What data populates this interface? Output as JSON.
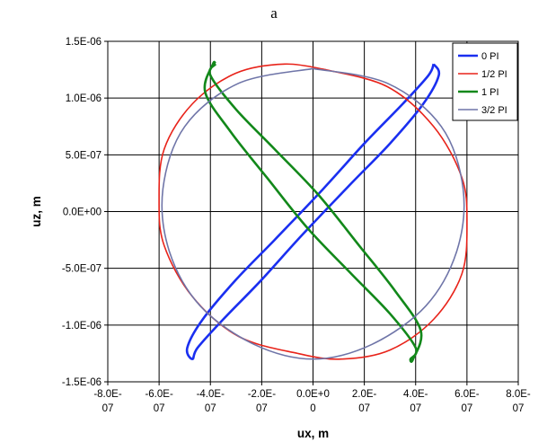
{
  "chart_data": {
    "type": "line",
    "title": "a",
    "xlabel": "ux, m",
    "ylabel": "uz, m",
    "xlim": [
      -8e-07,
      8e-07
    ],
    "ylim": [
      -1.5e-06,
      1.5e-06
    ],
    "x_ticks": [
      {
        "value": -8e-07,
        "line1": "-8.0E-",
        "line2": "07"
      },
      {
        "value": -6e-07,
        "line1": "-6.0E-",
        "line2": "07"
      },
      {
        "value": -4e-07,
        "line1": "-4.0E-",
        "line2": "07"
      },
      {
        "value": -2e-07,
        "line1": "-2.0E-",
        "line2": "07"
      },
      {
        "value": 0.0,
        "line1": "0.0E+0",
        "line2": "0"
      },
      {
        "value": 2e-07,
        "line1": "2.0E-",
        "line2": "07"
      },
      {
        "value": 4e-07,
        "line1": "4.0E-",
        "line2": "07"
      },
      {
        "value": 6e-07,
        "line1": "6.0E-",
        "line2": "07"
      },
      {
        "value": 8e-07,
        "line1": "8.0E-",
        "line2": "07"
      }
    ],
    "y_ticks": [
      {
        "value": 1.5e-06,
        "label": "1.5E-06"
      },
      {
        "value": 1e-06,
        "label": "1.0E-06"
      },
      {
        "value": 5e-07,
        "label": "5.0E-07"
      },
      {
        "value": 0.0,
        "label": "0.0E+00"
      },
      {
        "value": -5e-07,
        "label": "-5.0E-07"
      },
      {
        "value": -1e-06,
        "label": "-1.0E-06"
      },
      {
        "value": -1.5e-06,
        "label": "-1.5E-06"
      }
    ],
    "grid": true,
    "legend_position": "top-right",
    "series": [
      {
        "name": "0 PI",
        "color": "#1a2ff0",
        "x": [
          4.7e-07,
          4.5e-07,
          3.5e-07,
          2e-07,
          4e-08,
          -1.5e-07,
          -3e-07,
          -4.3e-07,
          -4.9e-07,
          -4.7e-07,
          -4.5e-07,
          -3.5e-07,
          -2e-07,
          -4e-08,
          1.5e-07,
          3e-07,
          4.3e-07,
          4.9e-07,
          4.7e-07
        ],
        "y": [
          1.3e-06,
          1.2e-06,
          9.5e-07,
          6e-07,
          2e-07,
          -2.5e-07,
          -6e-07,
          -9.5e-07,
          -1.2e-06,
          -1.3e-06,
          -1.2e-06,
          -9.5e-07,
          -6e-07,
          -2e-07,
          2.5e-07,
          6e-07,
          9.5e-07,
          1.2e-06,
          1.3e-06
        ]
      },
      {
        "name": "1/2 PI",
        "color": "#e8231a",
        "x": [
          5.1e-08,
          2.9e-07,
          4.7e-07,
          5.8e-07,
          6e-07,
          5.8e-07,
          4.7e-07,
          3e-07,
          1.1e-07,
          -6e-08,
          -2.9e-07,
          -4.7e-07,
          -5.8e-07,
          -6e-07,
          -5.8e-07,
          -4.7e-07,
          -3e-07,
          -1.1e-07,
          5.1e-08
        ],
        "y": [
          1.25e-06,
          1.1e-06,
          7.5e-07,
          3e-07,
          -1e-07,
          -5.5e-07,
          -9.5e-07,
          -1.22e-06,
          -1.3e-06,
          -1.25e-06,
          -1.1e-06,
          -7.5e-07,
          -3e-07,
          1e-07,
          5.5e-07,
          9.5e-07,
          1.22e-06,
          1.3e-06,
          1.25e-06
        ]
      },
      {
        "name": "1 PI",
        "color": "#12881a",
        "x": [
          -3.8e-07,
          -4e-07,
          -3e-07,
          -1.5e-07,
          2e-08,
          1.8e-07,
          3.2e-07,
          4.2e-07,
          3.9e-07,
          3.8e-07,
          4e-07,
          3e-07,
          1.5e-07,
          -2e-08,
          -1.8e-07,
          -3.2e-07,
          -4.2e-07,
          -3.9e-07,
          -3.8e-07
        ],
        "y": [
          1.3e-06,
          1.2e-06,
          9e-07,
          5.5e-07,
          1.5e-07,
          -3e-07,
          -7e-07,
          -1.05e-06,
          -1.3e-06,
          -1.3e-06,
          -1.2e-06,
          -9e-07,
          -5.5e-07,
          -1.5e-07,
          3e-07,
          7e-07,
          1.05e-06,
          1.3e-06,
          1.3e-06
        ]
      },
      {
        "name": "3/2 PI",
        "color": "#6f75a8",
        "x": [
          0.0,
          2.9e-07,
          5e-07,
          5.85e-07,
          5.6e-07,
          4.4e-07,
          2.3e-07,
          0.0,
          -2.3e-07,
          -4.4e-07,
          -5.6e-07,
          -5.85e-07,
          -5e-07,
          -2.9e-07,
          0.0
        ],
        "y": [
          1.26e-06,
          1.13e-06,
          7.5e-07,
          2e-07,
          -3.5e-07,
          -8.3e-07,
          -1.17e-06,
          -1.3e-06,
          -1.17e-06,
          -8.3e-07,
          -3.5e-07,
          2e-07,
          7.5e-07,
          1.13e-06,
          1.26e-06
        ]
      }
    ]
  }
}
